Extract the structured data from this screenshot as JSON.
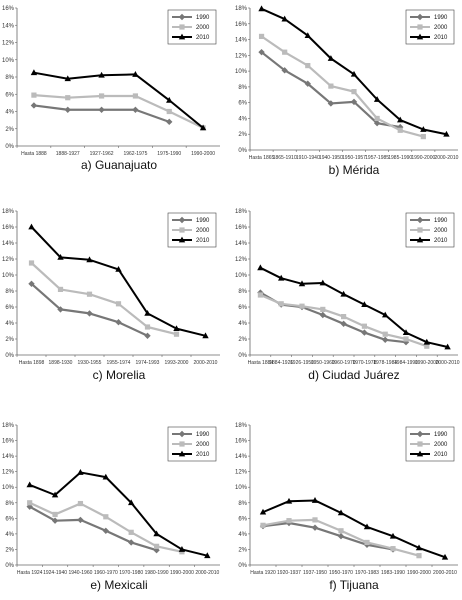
{
  "chart_data": [
    {
      "type": "line",
      "caption": "a) Guanajuato",
      "categories": [
        "Hasta 1888",
        "1888-1927",
        "1927-1962",
        "1962-1975",
        "1975-1990",
        "1990-2000"
      ],
      "ylim": [
        0,
        16
      ],
      "yticks": [
        "0%",
        "2%",
        "4%",
        "6%",
        "8%",
        "10%",
        "12%",
        "14%",
        "16%"
      ],
      "grid": false,
      "legend_position": "top-right",
      "series": [
        {
          "name": "1990",
          "color": "#777777",
          "marker": "diamond",
          "values": [
            4.7,
            4.2,
            4.2,
            4.2,
            2.8,
            null
          ]
        },
        {
          "name": "2000",
          "color": "#bbbbbb",
          "marker": "square",
          "values": [
            5.9,
            5.6,
            5.8,
            5.8,
            4.0,
            2.1
          ]
        },
        {
          "name": "2010",
          "color": "#000000",
          "marker": "triangle",
          "values": [
            8.5,
            7.8,
            8.2,
            8.3,
            5.3,
            2.1
          ]
        }
      ]
    },
    {
      "type": "line",
      "caption": "b) Mérida",
      "categories": [
        "Hasta 1865",
        "1865-1910",
        "1910-1940",
        "1940-1950",
        "1950-1957",
        "1957-1985",
        "1985-1990",
        "1990-2000",
        "2000-2010"
      ],
      "ylim": [
        0,
        18
      ],
      "yticks": [
        "0%",
        "2%",
        "4%",
        "6%",
        "8%",
        "10%",
        "12%",
        "14%",
        "16%",
        "18%"
      ],
      "grid": false,
      "legend_position": "top-right",
      "series": [
        {
          "name": "1990",
          "color": "#777777",
          "marker": "diamond",
          "values": [
            12.4,
            10.1,
            8.4,
            5.9,
            6.1,
            3.4,
            2.9,
            null,
            null
          ]
        },
        {
          "name": "2000",
          "color": "#bbbbbb",
          "marker": "square",
          "values": [
            14.4,
            12.4,
            10.7,
            8.1,
            7.4,
            4.0,
            2.5,
            1.7,
            null
          ]
        },
        {
          "name": "2010",
          "color": "#000000",
          "marker": "triangle",
          "values": [
            17.9,
            16.6,
            14.5,
            11.6,
            9.6,
            6.4,
            3.8,
            2.6,
            2.0
          ]
        }
      ]
    },
    {
      "type": "line",
      "caption": "c) Morelia",
      "categories": [
        "Hasta 1898",
        "1898-1930",
        "1930-1955",
        "1955-1974",
        "1974-1993",
        "1993-2000",
        "2000-2010"
      ],
      "ylim": [
        0,
        18
      ],
      "yticks": [
        "0%",
        "2%",
        "4%",
        "6%",
        "8%",
        "10%",
        "12%",
        "14%",
        "16%",
        "18%"
      ],
      "grid": false,
      "legend_position": "top-right",
      "series": [
        {
          "name": "1990",
          "color": "#777777",
          "marker": "diamond",
          "values": [
            8.9,
            5.7,
            5.2,
            4.1,
            2.4,
            null,
            null
          ]
        },
        {
          "name": "2000",
          "color": "#bbbbbb",
          "marker": "square",
          "values": [
            11.5,
            8.2,
            7.6,
            6.4,
            3.5,
            2.6,
            null
          ]
        },
        {
          "name": "2010",
          "color": "#000000",
          "marker": "triangle",
          "values": [
            16.0,
            12.2,
            11.9,
            10.7,
            5.2,
            3.3,
            2.4
          ]
        }
      ]
    },
    {
      "type": "line",
      "caption": "d) Ciudad Juárez",
      "categories": [
        "Hasta 1884",
        "1884-1926",
        "1926-1950",
        "1950-1960",
        "1960-1970",
        "1970-1978",
        "1978-1984",
        "1984-1990",
        "1990-2000",
        "2000-2010"
      ],
      "ylim": [
        0,
        18
      ],
      "yticks": [
        "0%",
        "2%",
        "4%",
        "6%",
        "8%",
        "10%",
        "12%",
        "14%",
        "16%",
        "18%"
      ],
      "grid": false,
      "legend_position": "top-right",
      "series": [
        {
          "name": "1990",
          "color": "#777777",
          "marker": "diamond",
          "values": [
            7.8,
            6.3,
            6.0,
            5.0,
            3.9,
            2.8,
            1.9,
            1.6,
            null,
            null
          ]
        },
        {
          "name": "2000",
          "color": "#bbbbbb",
          "marker": "square",
          "values": [
            7.5,
            6.4,
            6.1,
            5.7,
            4.8,
            3.6,
            2.6,
            2.0,
            1.1,
            null
          ]
        },
        {
          "name": "2010",
          "color": "#000000",
          "marker": "triangle",
          "values": [
            10.9,
            9.6,
            8.9,
            9.0,
            7.6,
            6.3,
            5.0,
            2.8,
            1.6,
            1.0
          ]
        }
      ]
    },
    {
      "type": "line",
      "caption": "e) Mexicali",
      "categories": [
        "Hasta 1924",
        "1924-1940",
        "1940-1960",
        "1960-1970",
        "1970-1980",
        "1980-1990",
        "1990-2000",
        "2000-2010"
      ],
      "ylim": [
        0,
        18
      ],
      "yticks": [
        "0%",
        "2%",
        "4%",
        "6%",
        "8%",
        "10%",
        "12%",
        "14%",
        "16%",
        "18%"
      ],
      "grid": false,
      "legend_position": "top-right",
      "series": [
        {
          "name": "1990",
          "color": "#777777",
          "marker": "diamond",
          "values": [
            7.5,
            5.7,
            5.8,
            4.4,
            2.9,
            1.9,
            null,
            null
          ]
        },
        {
          "name": "2000",
          "color": "#bbbbbb",
          "marker": "square",
          "values": [
            8.0,
            6.5,
            7.9,
            6.2,
            4.2,
            2.4,
            1.7,
            null
          ]
        },
        {
          "name": "2010",
          "color": "#000000",
          "marker": "triangle",
          "values": [
            10.3,
            9.0,
            11.9,
            11.3,
            8.0,
            4.0,
            2.0,
            1.2
          ]
        }
      ]
    },
    {
      "type": "line",
      "caption": "f) Tijuana",
      "categories": [
        "Hasta 1920",
        "1920-1937",
        "1937-1950",
        "1950-1970",
        "1970-1983",
        "1983-1990",
        "1990-2000",
        "2000-2010"
      ],
      "ylim": [
        0,
        18
      ],
      "yticks": [
        "0%",
        "2%",
        "4%",
        "6%",
        "8%",
        "10%",
        "12%",
        "14%",
        "16%",
        "18%"
      ],
      "grid": false,
      "legend_position": "top-right",
      "series": [
        {
          "name": "1990",
          "color": "#777777",
          "marker": "diamond",
          "values": [
            5.0,
            5.4,
            4.8,
            3.7,
            2.6,
            2.0,
            null,
            null
          ]
        },
        {
          "name": "2000",
          "color": "#bbbbbb",
          "marker": "square",
          "values": [
            5.1,
            5.7,
            5.8,
            4.4,
            2.9,
            2.1,
            1.2,
            null
          ]
        },
        {
          "name": "2010",
          "color": "#000000",
          "marker": "triangle",
          "values": [
            6.8,
            8.2,
            8.3,
            6.7,
            4.9,
            3.7,
            2.2,
            1.0
          ]
        }
      ]
    }
  ]
}
